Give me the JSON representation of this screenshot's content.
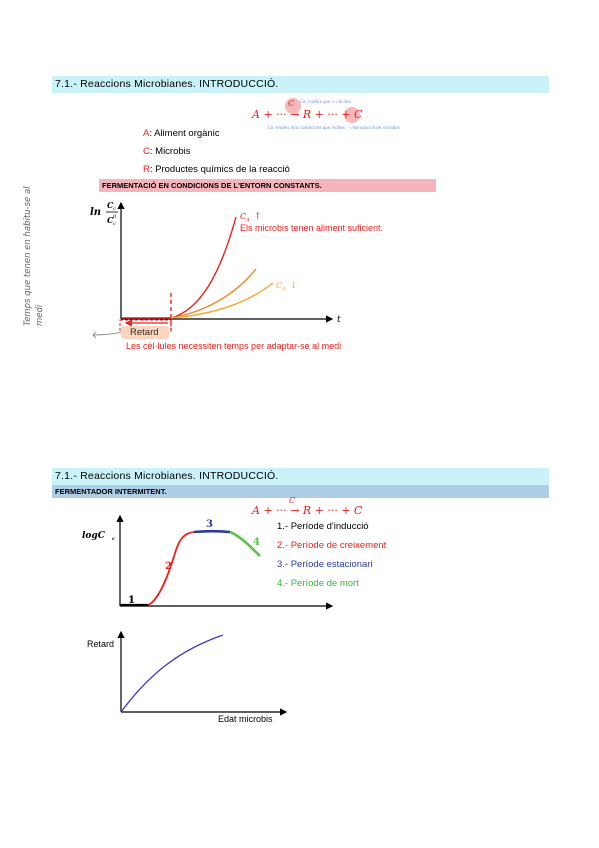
{
  "section1": {
    "title": "7.1.- Reaccions Microbianes. INTRODUCCIÓ.",
    "equation": "A + ··· → R + ··· + C",
    "equation_C": "C",
    "annotation_top": "Co: mateix que + cèl·lula",
    "annotation_bottom": "Co: modes dins condicions que moltes ··· reproducció de microbis",
    "legend": [
      {
        "key": "A",
        "text": ": Aliment orgànic"
      },
      {
        "key": "C",
        "text": ": Microbis"
      },
      {
        "key": "R",
        "text": ": Productes químics de la reacció"
      }
    ],
    "subtitle": "FERMENTACIÓ EN CONDICIONS DE L'ENTORN CONSTANTS.",
    "y_axis_label": "ln",
    "y_axis_fraction_num": "C",
    "y_axis_fraction_num_sub": "c",
    "y_axis_fraction_den": "C",
    "y_axis_fraction_den_sub": "c",
    "y_axis_fraction_den_sup": "0",
    "x_axis_label": "t",
    "label_high": "C",
    "label_high_sub": "A",
    "label_high_arrow": "↑",
    "label_low": "C",
    "label_low_sub": "A",
    "label_low_arrow": "↓",
    "note_enough_food": "Els microbis tenen aliment suficient.",
    "retard_label": "Retard",
    "note_adapt": "Les cèl·lules necessiten temps per adaptar-se al medi",
    "handwritten_side": "Temps que tenen en habitu-se al medi",
    "colors": {
      "red": "#e6221c",
      "orange": "#f08a24",
      "yellow_orange": "#f0a830",
      "retard_box": "#fbd5c0"
    }
  },
  "section2": {
    "title": "7.1.- Reaccions Microbianes. INTRODUCCIÓ.",
    "subtitle": "FERMENTADOR INTERMITENT.",
    "equation": "A + ··· → R + ··· + C",
    "equation_C": "C",
    "y_axis_label": "logC",
    "y_axis_label_sub": "c",
    "phase_numbers": [
      "1",
      "2",
      "3",
      "4"
    ],
    "phases": [
      {
        "text": "1.- Període d'inducció",
        "color": "#000000"
      },
      {
        "text": "2.- Període de creixement",
        "color": "#e6221c"
      },
      {
        "text": "3.- Període estacionari",
        "color": "#2d3a9c"
      },
      {
        "text": "4.- Període de mort",
        "color": "#3cb33c"
      }
    ],
    "retard_axis_label": "Retard",
    "x_axis_label2": "Edat microbis",
    "colors": {
      "curve2": "#3f3fbf",
      "phase1": "#000000",
      "phase2": "#e6221c",
      "phase3": "#2d3a9c",
      "phase4": "#5cc24a"
    }
  }
}
